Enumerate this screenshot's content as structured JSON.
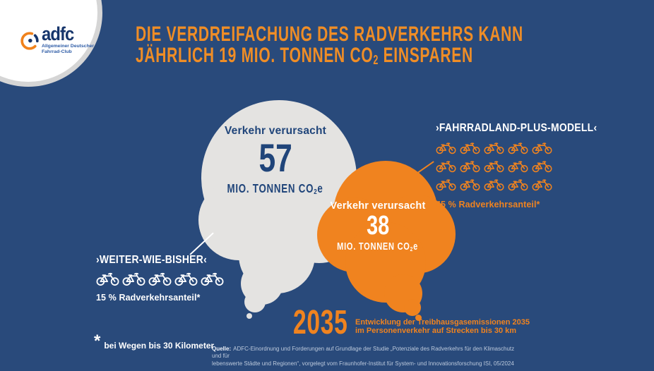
{
  "colors": {
    "background": "#294A7B",
    "orange": "#F0831F",
    "orange_title": "#EF8D26",
    "cloud_gray": "#E4E3E1",
    "navy_text": "#20457A",
    "white": "#FFFFFF"
  },
  "logo": {
    "brand": "adfc",
    "subtitle_line1": "Allgemeiner Deutscher",
    "subtitle_line2": "Fahrrad-Club"
  },
  "title": {
    "line1": "DIE VERDREIFACHUNG DES RADVERKEHRS KANN",
    "line2_pre": "JÄHRLICH 19 MIO. TONNEN CO",
    "line2_sub": "2",
    "line2_post": " EINSPAREN"
  },
  "bubble_57": {
    "label": "Verkehr verursacht",
    "value": "57",
    "unit_pre": "MIO. TONNEN CO",
    "unit_sub": "2",
    "unit_post": "e"
  },
  "bubble_38": {
    "label": "Verkehr verursacht",
    "value": "38",
    "unit_pre": "MIO. TONNEN CO",
    "unit_sub": "2",
    "unit_post": "e"
  },
  "scenario_left": {
    "title": "›WEITER-WIE-BISHER‹",
    "bikes": 5,
    "share": "15 % Radverkehrsanteil*"
  },
  "scenario_right": {
    "title": "›FAHRRADLAND-PLUS-MODELL‹",
    "bikes": 15,
    "share": "45 % Radverkehrsanteil*"
  },
  "year_label": {
    "year": "2035",
    "caption_line1": "Entwicklung der Treibhausgasemissionen 2035",
    "caption_line2": "im Personenverkehr auf Strecken bis 30 km"
  },
  "footnote": {
    "asterisk": "*",
    "text": "bei Wegen bis 30 Kilometer"
  },
  "source": {
    "label": "Quelle:",
    "line1": "ADFC-Einordnung und Forderungen auf Grundlage der Studie „Potenziale des Radverkehrs für den Klimaschutz und für",
    "line2": "lebenswerte Städte und Regionen“, vorgelegt vom Fraunhofer-Institut für System- und Innovationsforschung ISI, 05/2024"
  },
  "chart_data": {
    "type": "bubble",
    "title": "Die Verdreifachung des Radverkehrs kann jährlich 19 Mio. Tonnen CO2 einsparen",
    "categories": [
      "Weiter-wie-bisher",
      "Fahrradland-Plus-Modell"
    ],
    "series": [
      {
        "name": "Verkehr verursacht (Mio. Tonnen CO2e), 2035",
        "values": [
          57,
          38
        ]
      },
      {
        "name": "Radverkehrsanteil (%)",
        "values": [
          15,
          45
        ]
      }
    ],
    "savings_mio_tonnen_co2": 19,
    "annotations": [
      "2035 – Entwicklung der Treibhausgasemissionen 2035 im Personenverkehr auf Strecken bis 30 km",
      "* bei Wegen bis 30 Kilometer"
    ]
  }
}
